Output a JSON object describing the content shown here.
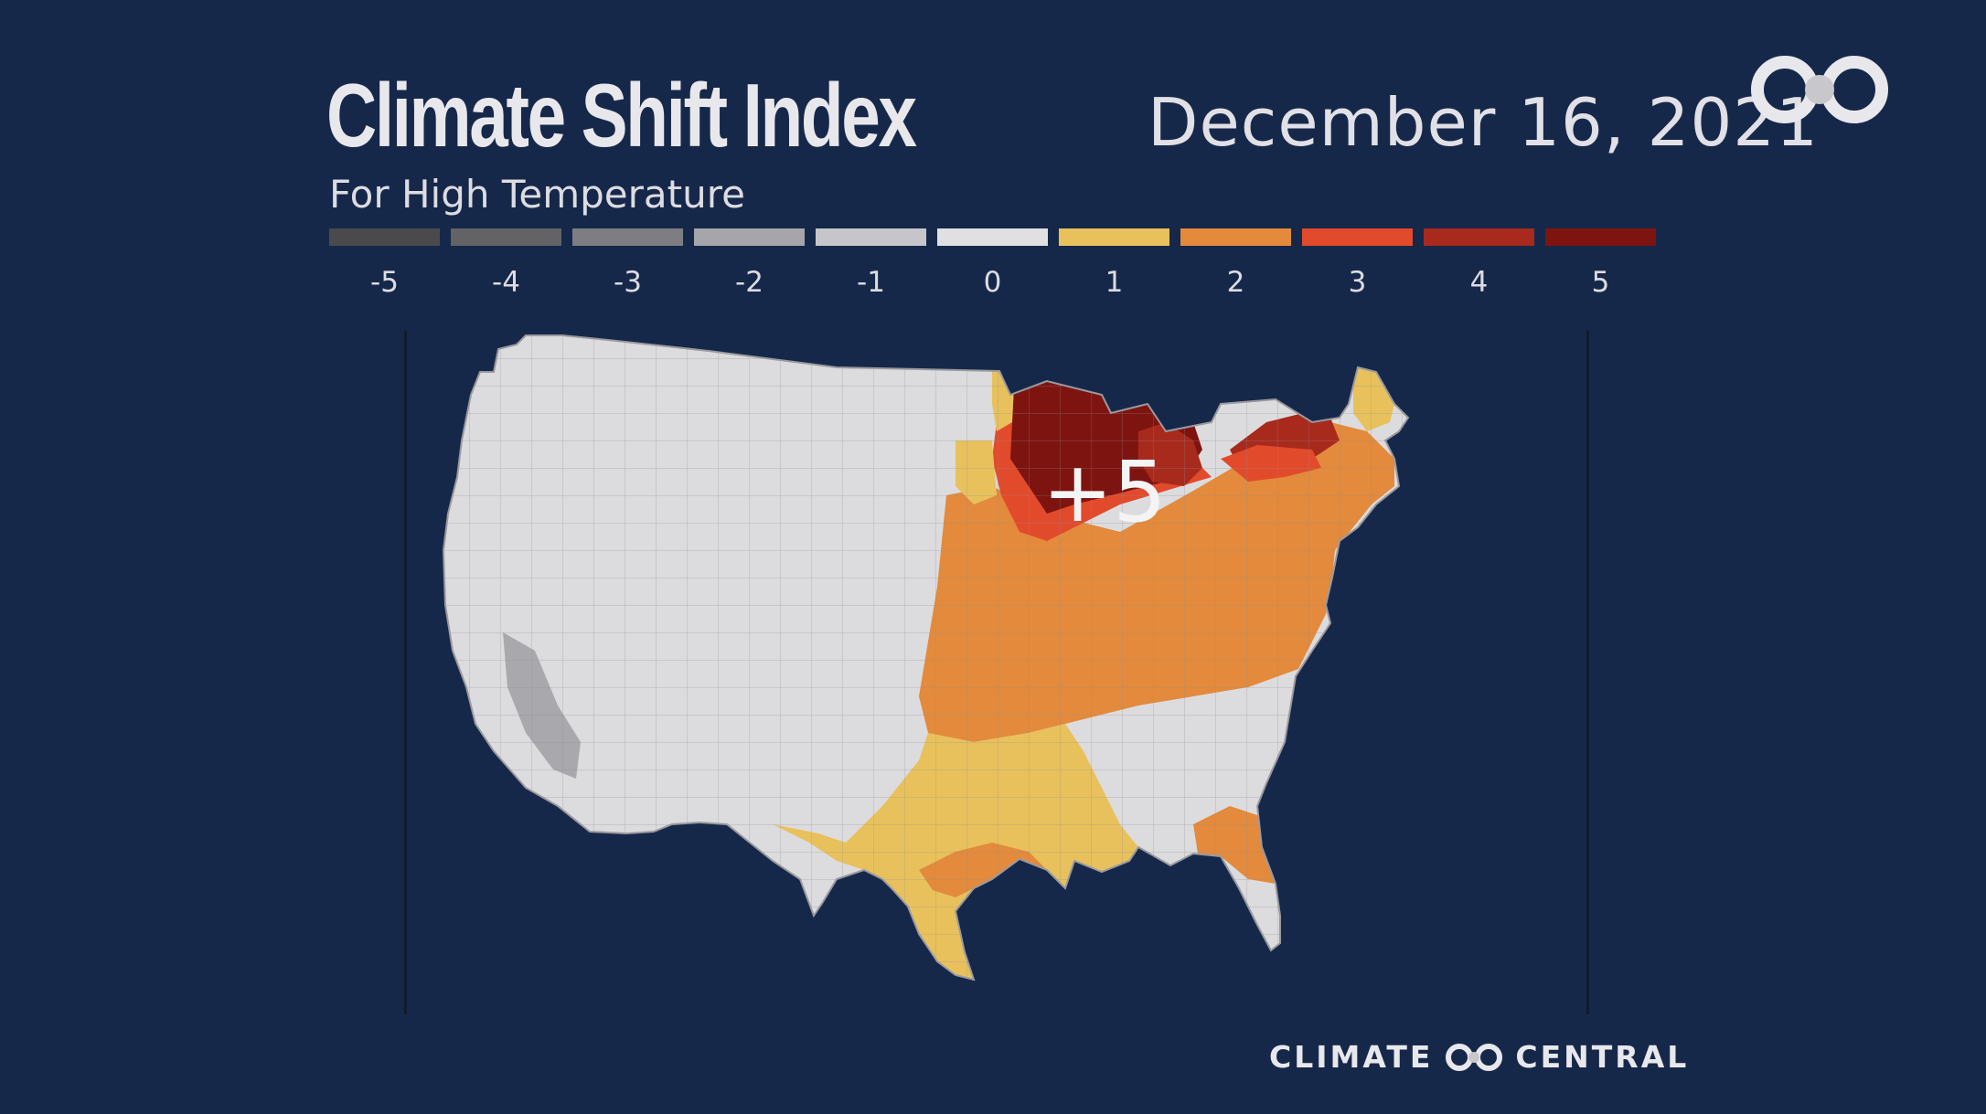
{
  "header": {
    "title": "Climate Shift Index",
    "subtitle": "For High Temperature",
    "date": "December 16, 2021"
  },
  "legend": {
    "items": [
      {
        "label": "-5",
        "color": "#4a4a4c"
      },
      {
        "label": "-4",
        "color": "#636366"
      },
      {
        "label": "-3",
        "color": "#7e7e82"
      },
      {
        "label": "-2",
        "color": "#a6a6aa"
      },
      {
        "label": "-1",
        "color": "#c6c6ca"
      },
      {
        "label": "0",
        "color": "#e0e0e2"
      },
      {
        "label": "1",
        "color": "#e8c15c"
      },
      {
        "label": "2",
        "color": "#e38a3c"
      },
      {
        "label": "3",
        "color": "#e24a2c"
      },
      {
        "label": "4",
        "color": "#a82a1c"
      },
      {
        "label": "5",
        "color": "#7e1410"
      }
    ]
  },
  "map": {
    "callout": "+5",
    "regions": [
      {
        "name": "west",
        "csi": 0
      },
      {
        "name": "california-central-valley",
        "csi": -2
      },
      {
        "name": "upper-midwest-michigan",
        "csi": 5
      },
      {
        "name": "ontario-border-new-york",
        "csi": 4
      },
      {
        "name": "southern-michigan-illinois",
        "csi": 3
      },
      {
        "name": "ohio-valley-northeast",
        "csi": 2
      },
      {
        "name": "south-central-gulf",
        "csi": 1
      },
      {
        "name": "southeast-interior",
        "csi": 0
      },
      {
        "name": "florida-peninsula",
        "csi": 0
      },
      {
        "name": "northern-maine",
        "csi": 1
      }
    ]
  },
  "footer": {
    "brand_left": "CLIMATE",
    "brand_right": "CENTRAL"
  }
}
